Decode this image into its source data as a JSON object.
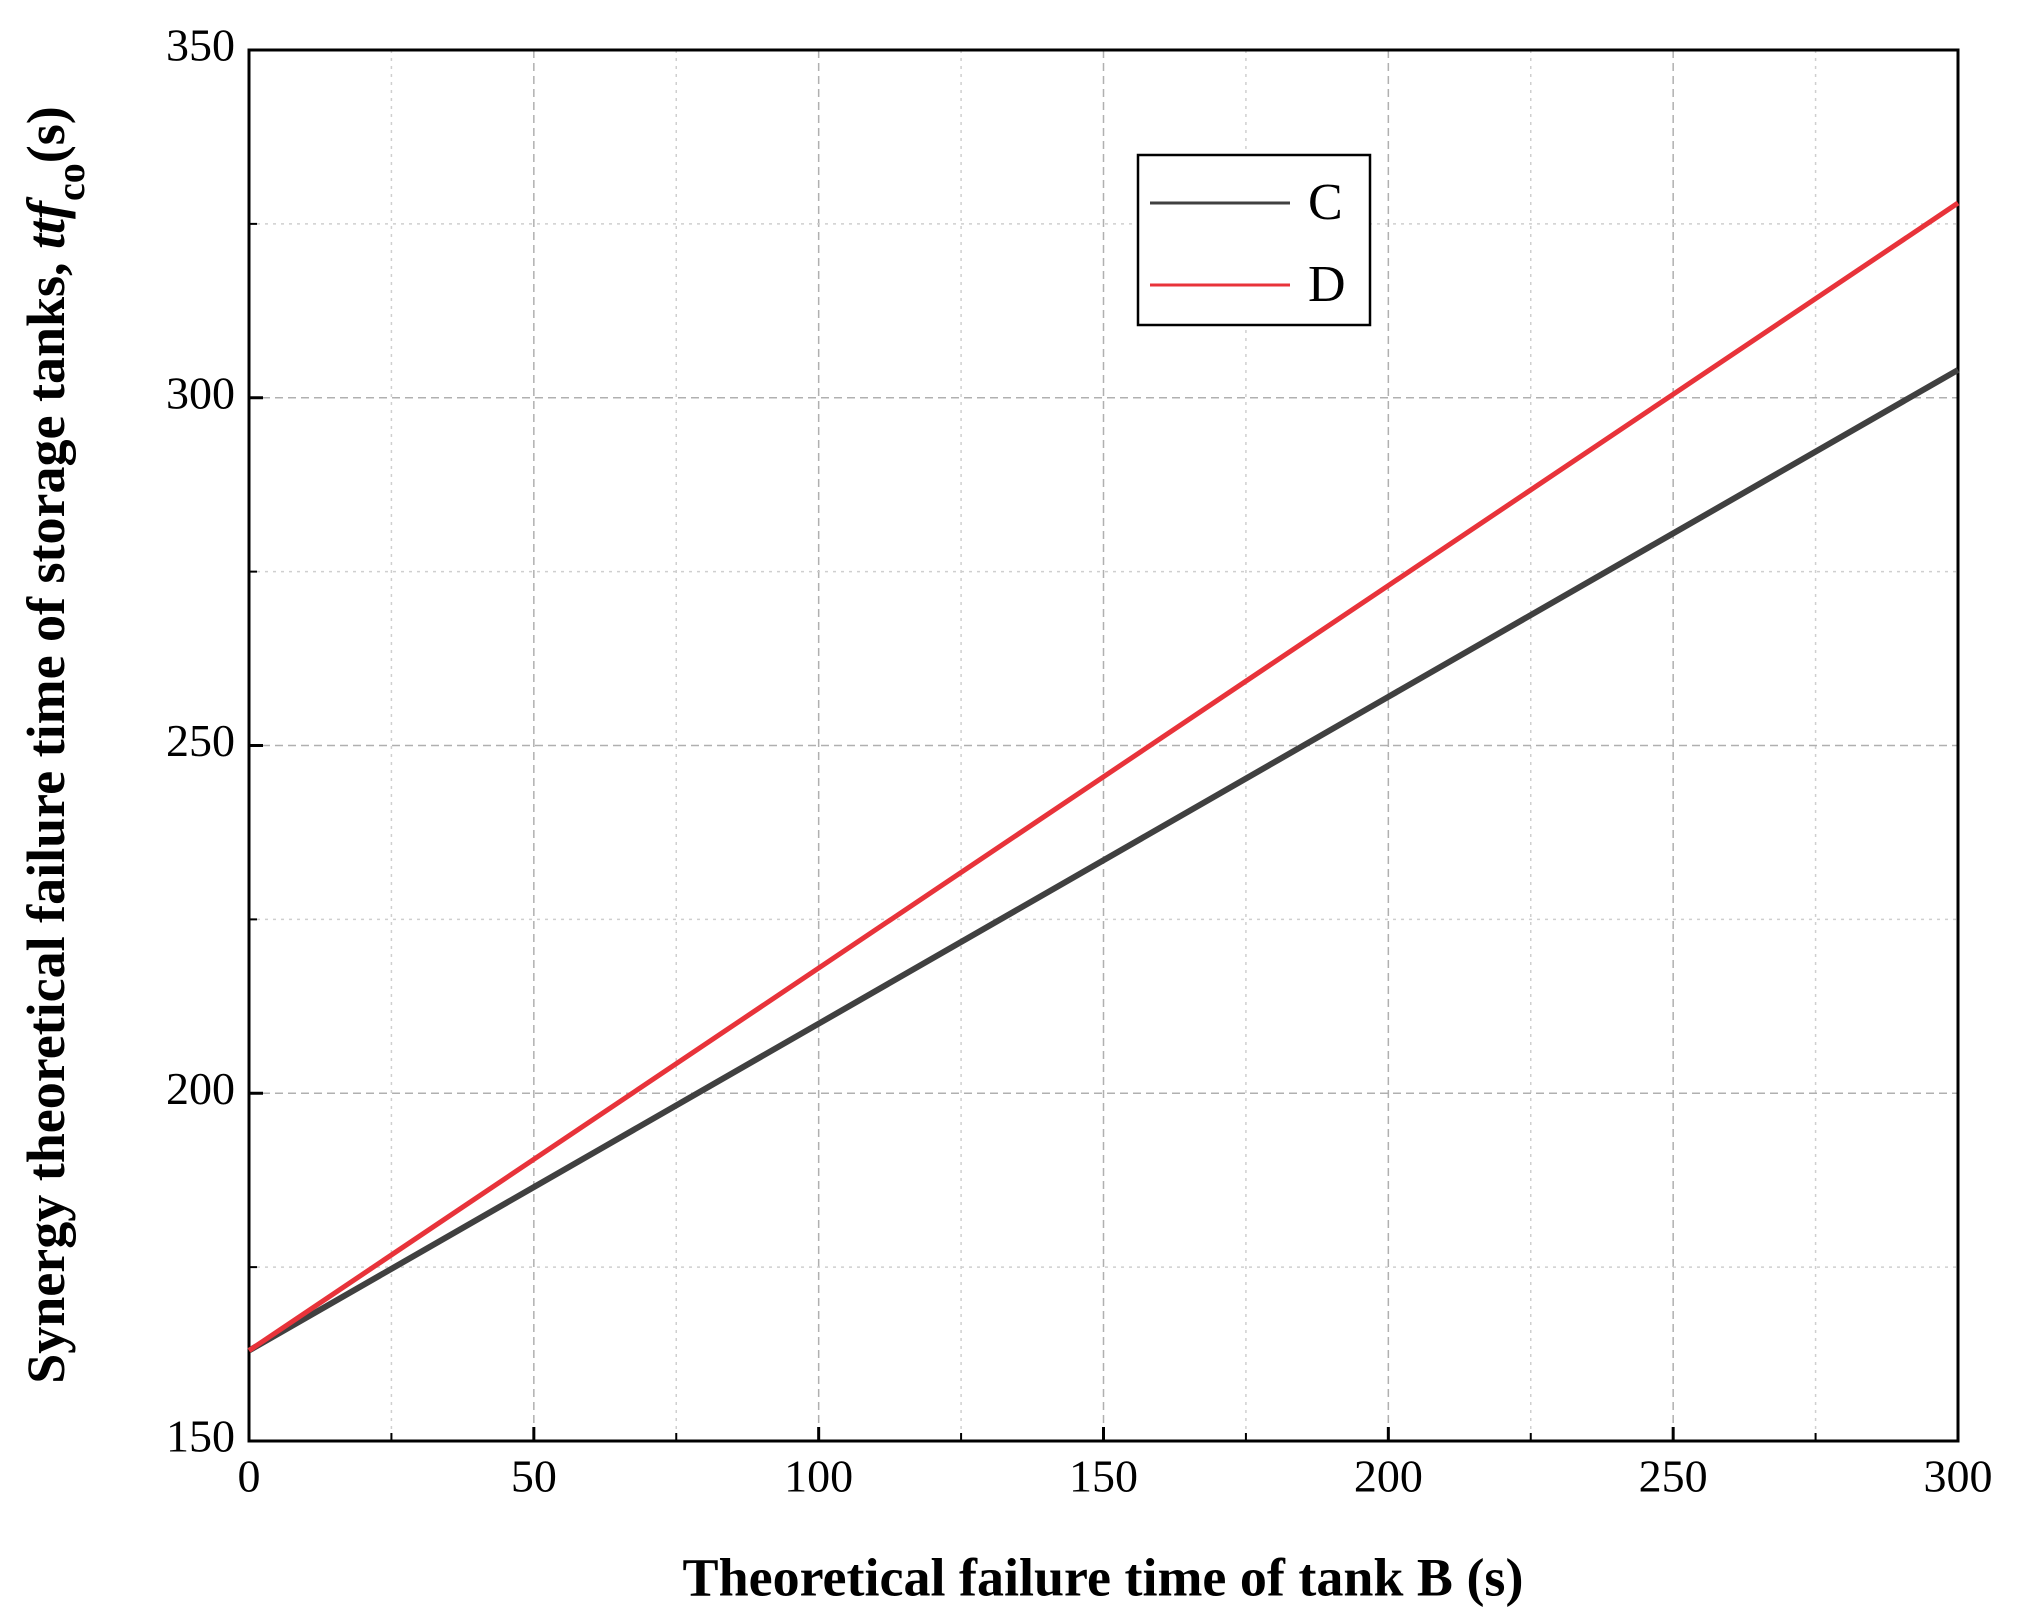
{
  "chart_data": {
    "type": "line",
    "xlabel": "Theoretical failure time of tank B (s)",
    "ylabel": {
      "text": "Synergy  theoretical failure time of  storage tanks, ",
      "italic": "ttf",
      "subscript": "co",
      "unit": "(s)"
    },
    "x": [
      0,
      50,
      100,
      150,
      200,
      250,
      300
    ],
    "series": [
      {
        "name": "C",
        "color": "#404040",
        "values": [
          163,
          186.5,
          210,
          233.5,
          257,
          280.5,
          304
        ]
      },
      {
        "name": "D",
        "color": "#e8333a",
        "values": [
          163,
          190.5,
          218,
          245.5,
          273,
          300.5,
          328
        ]
      }
    ],
    "xlim": [
      0,
      300
    ],
    "xticks": [
      0,
      50,
      100,
      150,
      200,
      250,
      300
    ],
    "xminorticks": [
      25,
      75,
      125,
      175,
      225,
      275
    ],
    "ylim": [
      150,
      350
    ],
    "yticks": [
      150,
      200,
      250,
      300,
      350
    ],
    "yminorticks": [
      175,
      225,
      275,
      325
    ],
    "grid": true,
    "legend": "upper center"
  }
}
